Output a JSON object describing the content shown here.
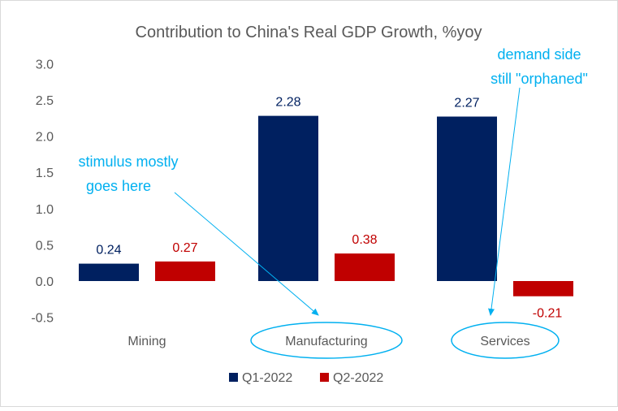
{
  "chart_data": {
    "type": "bar",
    "title": "Contribution to China's Real GDP Growth, %yoy",
    "categories": [
      "Mining",
      "Manufacturing",
      "Services"
    ],
    "series": [
      {
        "name": "Q1-2022",
        "values": [
          0.24,
          2.28,
          2.27
        ],
        "color": "#002060"
      },
      {
        "name": "Q2-2022",
        "values": [
          0.27,
          0.38,
          -0.21
        ],
        "color": "#c00000"
      }
    ],
    "ylim": [
      -0.5,
      3.0
    ],
    "yticks": [
      "3.0",
      "2.5",
      "2.0",
      "1.5",
      "1.0",
      "0.5",
      "0.0",
      "-0.5"
    ],
    "data_labels": [
      [
        "0.24",
        "2.28",
        "2.27"
      ],
      [
        "0.27",
        "0.38",
        "-0.21"
      ]
    ],
    "grid": false,
    "legend": "bottom",
    "annotations": [
      {
        "lines": [
          "stimulus mostly",
          "goes here"
        ],
        "points_to": "Manufacturing",
        "color": "#00b0f0"
      },
      {
        "lines": [
          "demand side",
          "still \"orphaned\""
        ],
        "points_to": "Services",
        "color": "#00b0f0"
      }
    ],
    "annotation_color": "#00b0f0"
  }
}
